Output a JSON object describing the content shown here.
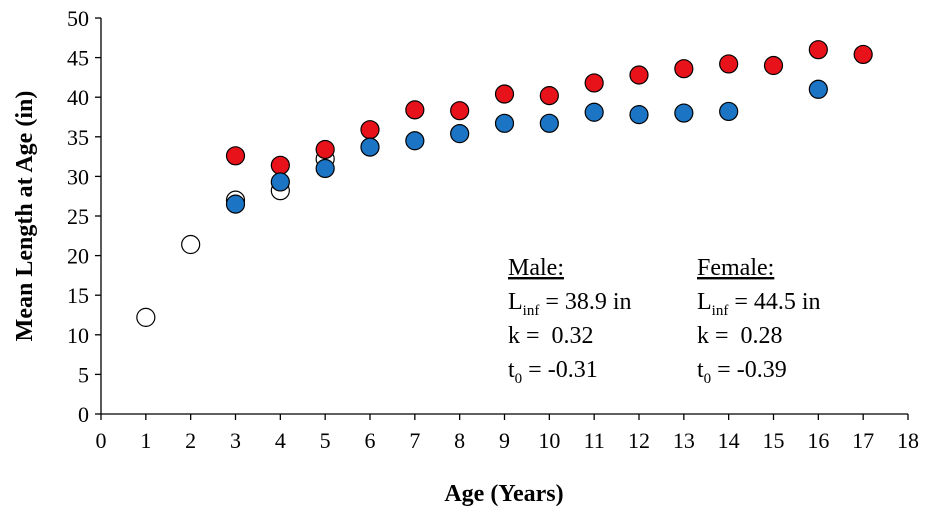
{
  "chart_data": {
    "type": "scatter",
    "xlabel": "Age (Years)",
    "ylabel": "Mean Length at Age (in)",
    "xlim": [
      0,
      18
    ],
    "ylim": [
      0,
      50
    ],
    "x_ticks": [
      "0",
      "1",
      "2",
      "3",
      "4",
      "5",
      "6",
      "7",
      "8",
      "9",
      "10",
      "11",
      "12",
      "13",
      "14",
      "15",
      "16",
      "17",
      "18"
    ],
    "y_ticks": [
      "0",
      "5",
      "10",
      "15",
      "20",
      "25",
      "30",
      "35",
      "40",
      "45",
      "50"
    ],
    "grid": false,
    "series": [
      {
        "fill": "#ffffff",
        "points": [
          {
            "x": 1,
            "y": 12.2
          },
          {
            "x": 2,
            "y": 21.4
          },
          {
            "x": 3,
            "y": 27.0
          },
          {
            "x": 4,
            "y": 28.2
          },
          {
            "x": 5,
            "y": 32.2
          }
        ]
      },
      {
        "fill": "#e8131a",
        "points": [
          {
            "x": 3,
            "y": 32.6
          },
          {
            "x": 4,
            "y": 31.4
          },
          {
            "x": 5,
            "y": 33.4
          },
          {
            "x": 6,
            "y": 35.9
          },
          {
            "x": 7,
            "y": 38.4
          },
          {
            "x": 8,
            "y": 38.3
          },
          {
            "x": 9,
            "y": 40.4
          },
          {
            "x": 10,
            "y": 40.2
          },
          {
            "x": 11,
            "y": 41.8
          },
          {
            "x": 12,
            "y": 42.8
          },
          {
            "x": 13,
            "y": 43.6
          },
          {
            "x": 14,
            "y": 44.2
          },
          {
            "x": 15,
            "y": 44.0
          },
          {
            "x": 16,
            "y": 46.0
          },
          {
            "x": 17,
            "y": 45.4
          }
        ]
      },
      {
        "fill": "#1c74c4",
        "points": [
          {
            "x": 3,
            "y": 26.5
          },
          {
            "x": 4,
            "y": 29.3
          },
          {
            "x": 5,
            "y": 31.0
          },
          {
            "x": 6,
            "y": 33.7
          },
          {
            "x": 7,
            "y": 34.5
          },
          {
            "x": 8,
            "y": 35.4
          },
          {
            "x": 9,
            "y": 36.7
          },
          {
            "x": 10,
            "y": 36.7
          },
          {
            "x": 11,
            "y": 38.1
          },
          {
            "x": 12,
            "y": 37.8
          },
          {
            "x": 13,
            "y": 38.0
          },
          {
            "x": 14,
            "y": 38.2
          },
          {
            "x": 16,
            "y": 41.0
          }
        ]
      }
    ],
    "annotations": {
      "male": {
        "heading": "Male:",
        "linf_L": "L",
        "linf_sub": "inf",
        "linf_value": " = 38.9 in",
        "k": "k =  0.32",
        "t0_t": "t",
        "t0_sub": "0",
        "t0_value": " = -0.31"
      },
      "female": {
        "heading": "Female:",
        "linf_L": "L",
        "linf_sub": "inf",
        "linf_value": " = 44.5 in",
        "k": "k =  0.28",
        "t0_t": "t",
        "t0_sub": "0",
        "t0_value": " = -0.39"
      }
    }
  }
}
